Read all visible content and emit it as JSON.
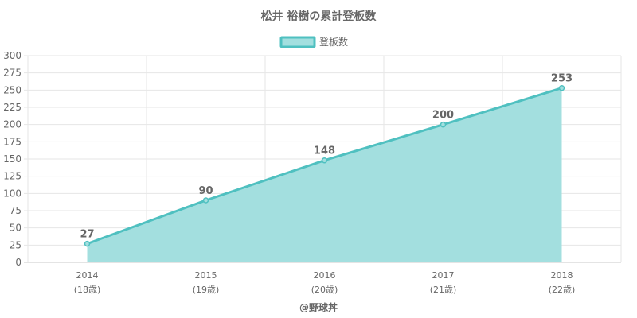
{
  "chart_data": {
    "type": "area",
    "title": "松井 裕樹の累計登板数",
    "series": [
      {
        "name": "登板数",
        "values": [
          27,
          90,
          148,
          200,
          253
        ]
      }
    ],
    "categories": [
      "2014",
      "2015",
      "2016",
      "2017",
      "2018"
    ],
    "category_sublabels": [
      "(18歳)",
      "(19歳)",
      "(20歳)",
      "(21歳)",
      "(22歳)"
    ],
    "data_labels": [
      "27",
      "90",
      "148",
      "200",
      "253"
    ],
    "y_ticks": [
      "0",
      "25",
      "50",
      "75",
      "100",
      "125",
      "150",
      "175",
      "200",
      "225",
      "250",
      "275",
      "300"
    ],
    "ylim": [
      0,
      300
    ],
    "grid": true,
    "legend_position": "top",
    "colors": {
      "line": "#4fc0c0",
      "fill": "#a3dfdf",
      "grid": "#e6e6e6",
      "text": "#666666"
    }
  },
  "footer": "@野球丼"
}
